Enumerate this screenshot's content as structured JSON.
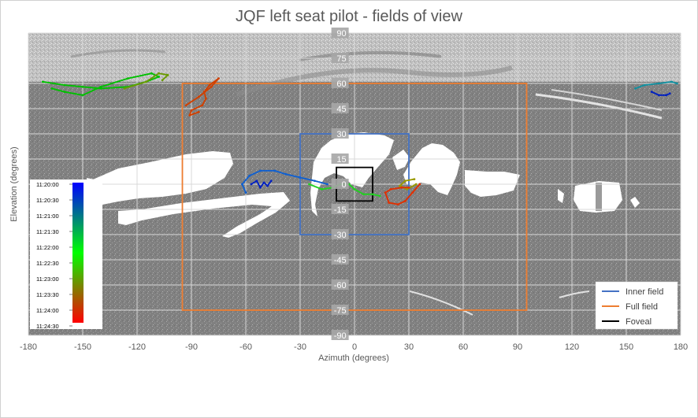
{
  "chart_data": {
    "type": "scatter",
    "title": "JQF left seat pilot - fields of view",
    "xlabel": "Azimuth (degrees)",
    "ylabel": "Elevation (degrees)",
    "xlim": [
      -180,
      180
    ],
    "ylim": [
      -90,
      90
    ],
    "x_ticks": [
      -180,
      -150,
      -120,
      -90,
      -60,
      -30,
      0,
      30,
      60,
      90,
      120,
      150,
      180
    ],
    "y_ticks": [
      90,
      75,
      60,
      45,
      30,
      15,
      0,
      -15,
      -30,
      -45,
      -60,
      -75,
      -90
    ],
    "grid": true,
    "legend_position": "bottom-right",
    "regions": [
      {
        "name": "Inner field",
        "x": [
          -30,
          30
        ],
        "y": [
          -30,
          30
        ],
        "color": "#4472c4"
      },
      {
        "name": "Full field",
        "x": [
          -95,
          95
        ],
        "y": [
          -75,
          60
        ],
        "color": "#ed7d31"
      },
      {
        "name": "Foveal",
        "x": [
          -10,
          10
        ],
        "y": [
          -10,
          10
        ],
        "color": "#000000"
      }
    ],
    "colorbar": {
      "labels": [
        "11:20:00",
        "11:20:30",
        "11:21:00",
        "11:21:30",
        "11:22:00",
        "11:22:30",
        "11:23:00",
        "11:23:30",
        "11:24:00",
        "11:24:30"
      ],
      "colors": [
        "#0000ff",
        "#00ff00",
        "#ff0000"
      ]
    },
    "gaze_tracks": [
      {
        "color": "#00c000",
        "points": [
          [
            -172,
            61
          ],
          [
            -160,
            59
          ],
          [
            -150,
            58
          ],
          [
            -140,
            57
          ],
          [
            -125,
            58
          ],
          [
            -115,
            61
          ],
          [
            -108,
            64
          ],
          [
            -112,
            66
          ],
          [
            -125,
            63
          ],
          [
            -140,
            58
          ],
          [
            -150,
            53
          ],
          [
            -160,
            55
          ],
          [
            -167,
            57
          ]
        ]
      },
      {
        "color": "#6a9a00",
        "points": [
          [
            -127,
            57
          ],
          [
            -115,
            61
          ],
          [
            -108,
            66
          ],
          [
            -103,
            65
          ],
          [
            -106,
            62
          ]
        ]
      },
      {
        "color": "#d04000",
        "points": [
          [
            -93,
            47
          ],
          [
            -86,
            52
          ],
          [
            -79,
            58
          ],
          [
            -75,
            63
          ],
          [
            -80,
            59
          ],
          [
            -83,
            55
          ],
          [
            -82,
            51
          ],
          [
            -84,
            47
          ],
          [
            -90,
            44
          ],
          [
            -91,
            41
          ],
          [
            -86,
            43
          ]
        ]
      },
      {
        "color": "#1060d0",
        "points": [
          [
            -60,
            -5
          ],
          [
            -62,
            0
          ],
          [
            -58,
            5
          ],
          [
            -52,
            8
          ],
          [
            -44,
            8
          ],
          [
            -38,
            6
          ],
          [
            -30,
            4
          ],
          [
            -22,
            2
          ],
          [
            -15,
            0
          ]
        ]
      },
      {
        "color": "#0020c0",
        "points": [
          [
            -57,
            0
          ],
          [
            -54,
            2
          ],
          [
            -52,
            -2
          ],
          [
            -50,
            1
          ],
          [
            -48,
            -1
          ],
          [
            -46,
            2
          ]
        ]
      },
      {
        "color": "#20d020",
        "points": [
          [
            -25,
            0
          ],
          [
            -18,
            -3
          ],
          [
            -12,
            -2
          ],
          [
            -8,
            0
          ],
          [
            -3,
            0
          ],
          [
            0,
            -3
          ],
          [
            5,
            -6
          ],
          [
            10,
            -6
          ],
          [
            14,
            -7
          ]
        ]
      },
      {
        "color": "#9a9a00",
        "points": [
          [
            34,
            0
          ],
          [
            29,
            -3
          ],
          [
            25,
            -1
          ],
          [
            28,
            2
          ],
          [
            33,
            3
          ]
        ]
      },
      {
        "color": "#e03000",
        "points": [
          [
            36,
            0
          ],
          [
            32,
            -5
          ],
          [
            28,
            -10
          ],
          [
            24,
            -12
          ],
          [
            19,
            -11
          ],
          [
            17,
            -5
          ],
          [
            20,
            -3
          ],
          [
            26,
            -2
          ],
          [
            30,
            -2
          ]
        ]
      },
      {
        "color": "#1090a0",
        "points": [
          [
            155,
            57
          ],
          [
            160,
            59
          ],
          [
            168,
            60
          ],
          [
            175,
            61
          ],
          [
            178,
            60
          ]
        ]
      },
      {
        "color": "#0020c0",
        "points": [
          [
            164,
            55
          ],
          [
            168,
            53
          ],
          [
            172,
            53
          ],
          [
            174,
            54
          ]
        ]
      }
    ]
  }
}
